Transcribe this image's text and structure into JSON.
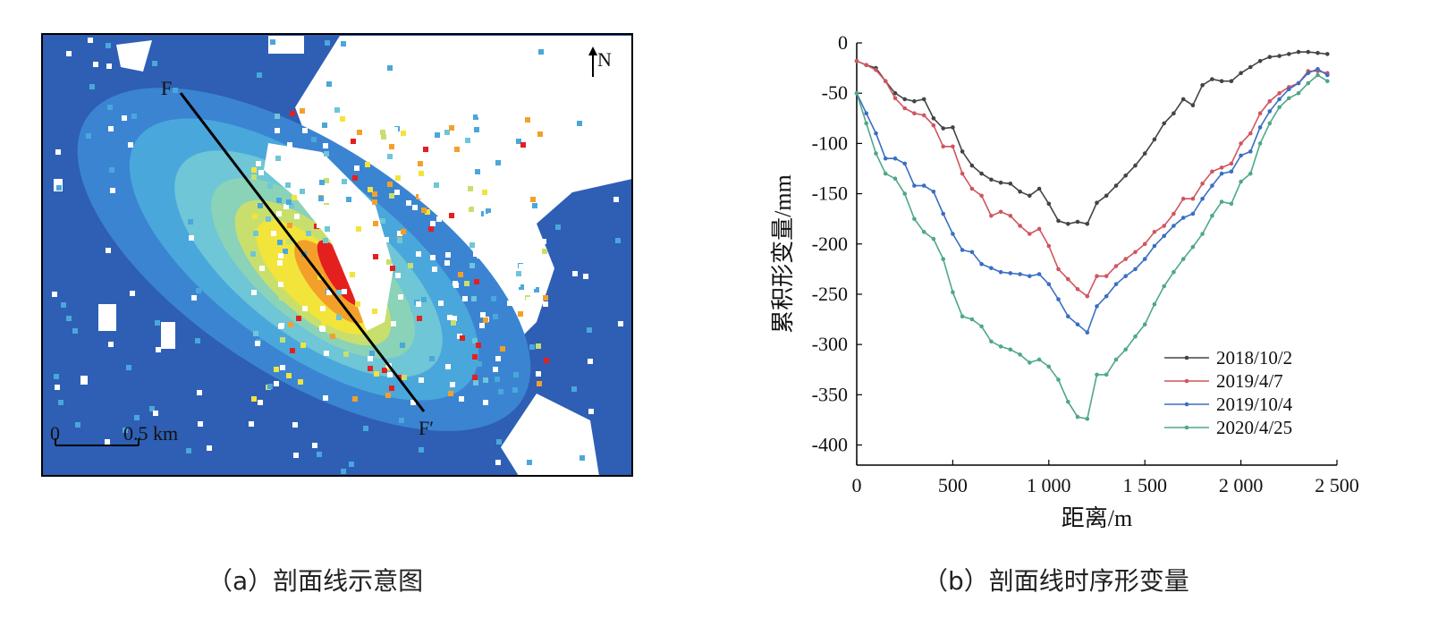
{
  "panel_a": {
    "caption": "（a）剖面线示意图",
    "profile_start_label": "F",
    "profile_end_label": "F′",
    "north_label": "N",
    "scale_zero": "0",
    "scale_label": "0.5 km",
    "colors": {
      "background_blue": "#2e5fb4",
      "blue_mid": "#3b84d2",
      "light_blue": "#4aa7dc",
      "cyan": "#6ec6d6",
      "teal": "#8ad2b8",
      "yellow_green": "#c8df6e",
      "yellow": "#f2e43a",
      "orange": "#f3a02a",
      "red": "#e4201e",
      "profile_line": "#000000"
    }
  },
  "panel_b": {
    "caption": "（b）剖面线时序形变量",
    "chart_data": {
      "type": "line",
      "xlabel": "距离/m",
      "ylabel": "累积形变量/mm",
      "xlim": [
        0,
        2500
      ],
      "ylim": [
        -420,
        0
      ],
      "xticks": [
        0,
        500,
        1000,
        1500,
        2000,
        2500
      ],
      "xtick_labels": [
        "0",
        "500",
        "1 000",
        "1 500",
        "2 000",
        "2 500"
      ],
      "yticks": [
        0,
        -50,
        -100,
        -150,
        -200,
        -250,
        -300,
        -350,
        -400
      ],
      "ytick_labels": [
        "0",
        "-50",
        "-100",
        "-150",
        "-200",
        "-250",
        "-300",
        "-350",
        "-400"
      ],
      "grid": false,
      "legend_position": "bottom-right",
      "x": [
        0,
        50,
        100,
        150,
        200,
        250,
        300,
        350,
        400,
        450,
        500,
        550,
        600,
        650,
        700,
        750,
        800,
        850,
        900,
        950,
        1000,
        1050,
        1100,
        1150,
        1200,
        1250,
        1300,
        1350,
        1400,
        1450,
        1500,
        1550,
        1600,
        1650,
        1700,
        1750,
        1800,
        1850,
        1900,
        1950,
        2000,
        2050,
        2100,
        2150,
        2200,
        2250,
        2300,
        2350,
        2400,
        2450
      ],
      "series": [
        {
          "name": "2018/10/2",
          "color": "#444444",
          "values": [
            -18,
            -22,
            -25,
            -38,
            -50,
            -56,
            -58,
            -56,
            -75,
            -85,
            -84,
            -108,
            -122,
            -130,
            -136,
            -139,
            -140,
            -148,
            -152,
            -145,
            -160,
            -177,
            -180,
            -178,
            -180,
            -159,
            -152,
            -142,
            -132,
            -122,
            -110,
            -96,
            -80,
            -70,
            -56,
            -62,
            -42,
            -36,
            -38,
            -38,
            -30,
            -24,
            -18,
            -14,
            -13,
            -11,
            -9,
            -9,
            -10,
            -11
          ]
        },
        {
          "name": "2019/4/7",
          "color": "#d0555f",
          "values": [
            -18,
            -22,
            -27,
            -38,
            -55,
            -65,
            -70,
            -72,
            -82,
            -103,
            -103,
            -130,
            -145,
            -152,
            -172,
            -168,
            -172,
            -182,
            -190,
            -185,
            -202,
            -225,
            -235,
            -245,
            -252,
            -232,
            -232,
            -222,
            -215,
            -208,
            -200,
            -188,
            -182,
            -170,
            -155,
            -155,
            -140,
            -128,
            -124,
            -120,
            -100,
            -90,
            -70,
            -58,
            -50,
            -44,
            -40,
            -28,
            -28,
            -30
          ]
        },
        {
          "name": "2019/10/4",
          "color": "#3a6ec4",
          "values": [
            -50,
            -70,
            -90,
            -115,
            -115,
            -120,
            -142,
            -142,
            -148,
            -170,
            -190,
            -206,
            -208,
            -220,
            -224,
            -228,
            -229,
            -230,
            -232,
            -230,
            -240,
            -255,
            -272,
            -280,
            -288,
            -262,
            -252,
            -240,
            -232,
            -225,
            -215,
            -202,
            -192,
            -182,
            -174,
            -170,
            -155,
            -142,
            -130,
            -128,
            -112,
            -108,
            -84,
            -68,
            -56,
            -46,
            -40,
            -30,
            -26,
            -32
          ]
        },
        {
          "name": "2020/4/25",
          "color": "#4fa78a",
          "values": [
            -50,
            -80,
            -110,
            -130,
            -135,
            -150,
            -175,
            -188,
            -195,
            -215,
            -248,
            -272,
            -275,
            -282,
            -297,
            -302,
            -305,
            -310,
            -318,
            -315,
            -322,
            -335,
            -357,
            -372,
            -374,
            -330,
            -330,
            -315,
            -305,
            -292,
            -280,
            -260,
            -242,
            -228,
            -215,
            -203,
            -190,
            -172,
            -158,
            -160,
            -138,
            -130,
            -100,
            -80,
            -64,
            -55,
            -50,
            -40,
            -32,
            -38
          ]
        }
      ]
    }
  }
}
